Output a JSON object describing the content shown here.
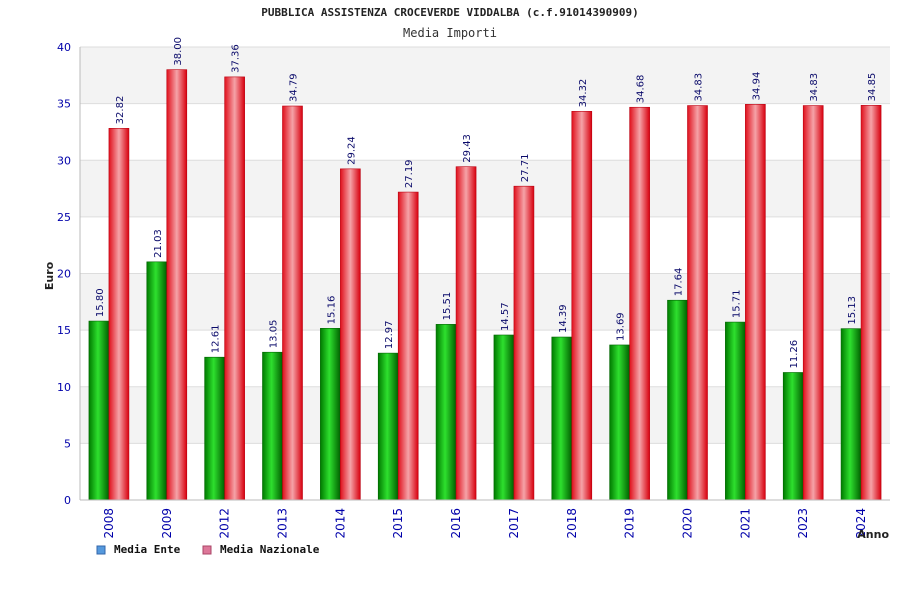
{
  "chart_data": {
    "type": "bar",
    "title": "PUBBLICA ASSISTENZA CROCEVERDE VIDDALBA (c.f.91014390909)",
    "subtitle": "Media Importi",
    "ylabel": "Euro",
    "xlabel": "Anno",
    "ylim": [
      0,
      40
    ],
    "yticks": [
      0,
      5,
      10,
      15,
      20,
      25,
      30,
      35,
      40
    ],
    "categories": [
      "2008",
      "2009",
      "2012",
      "2013",
      "2014",
      "2015",
      "2016",
      "2017",
      "2018",
      "2019",
      "2020",
      "2021",
      "2023",
      "2024"
    ],
    "series": [
      {
        "name": "Media Ente",
        "color": "#00bb00",
        "labels": [
          "15.80",
          "21.03",
          "12.61",
          "13.05",
          "15.16",
          "12.97",
          "15.51",
          "14.57",
          "14.39",
          "13.69",
          "17.64",
          "15.71",
          "11.26",
          "15.13"
        ],
        "values": [
          15.8,
          21.03,
          12.61,
          13.05,
          15.16,
          12.97,
          15.51,
          14.57,
          14.39,
          13.69,
          17.64,
          15.71,
          11.26,
          15.13
        ]
      },
      {
        "name": "Media Nazionale",
        "color": "#ee1122",
        "labels": [
          "32.82",
          "38.00",
          "37.36",
          "34.79",
          "29.24",
          "27.19",
          "29.43",
          "27.71",
          "34.32",
          "34.68",
          "34.83",
          "34.94",
          "34.83",
          "34.85"
        ],
        "values": [
          32.82,
          38.0,
          37.36,
          34.79,
          29.24,
          27.19,
          29.43,
          27.71,
          34.32,
          34.68,
          34.83,
          34.94,
          34.83,
          34.85
        ]
      }
    ],
    "legend": [
      {
        "label": "Media Ente",
        "color": "#5599dd"
      },
      {
        "label": "Media Nazionale",
        "color": "#dd7799"
      }
    ]
  }
}
